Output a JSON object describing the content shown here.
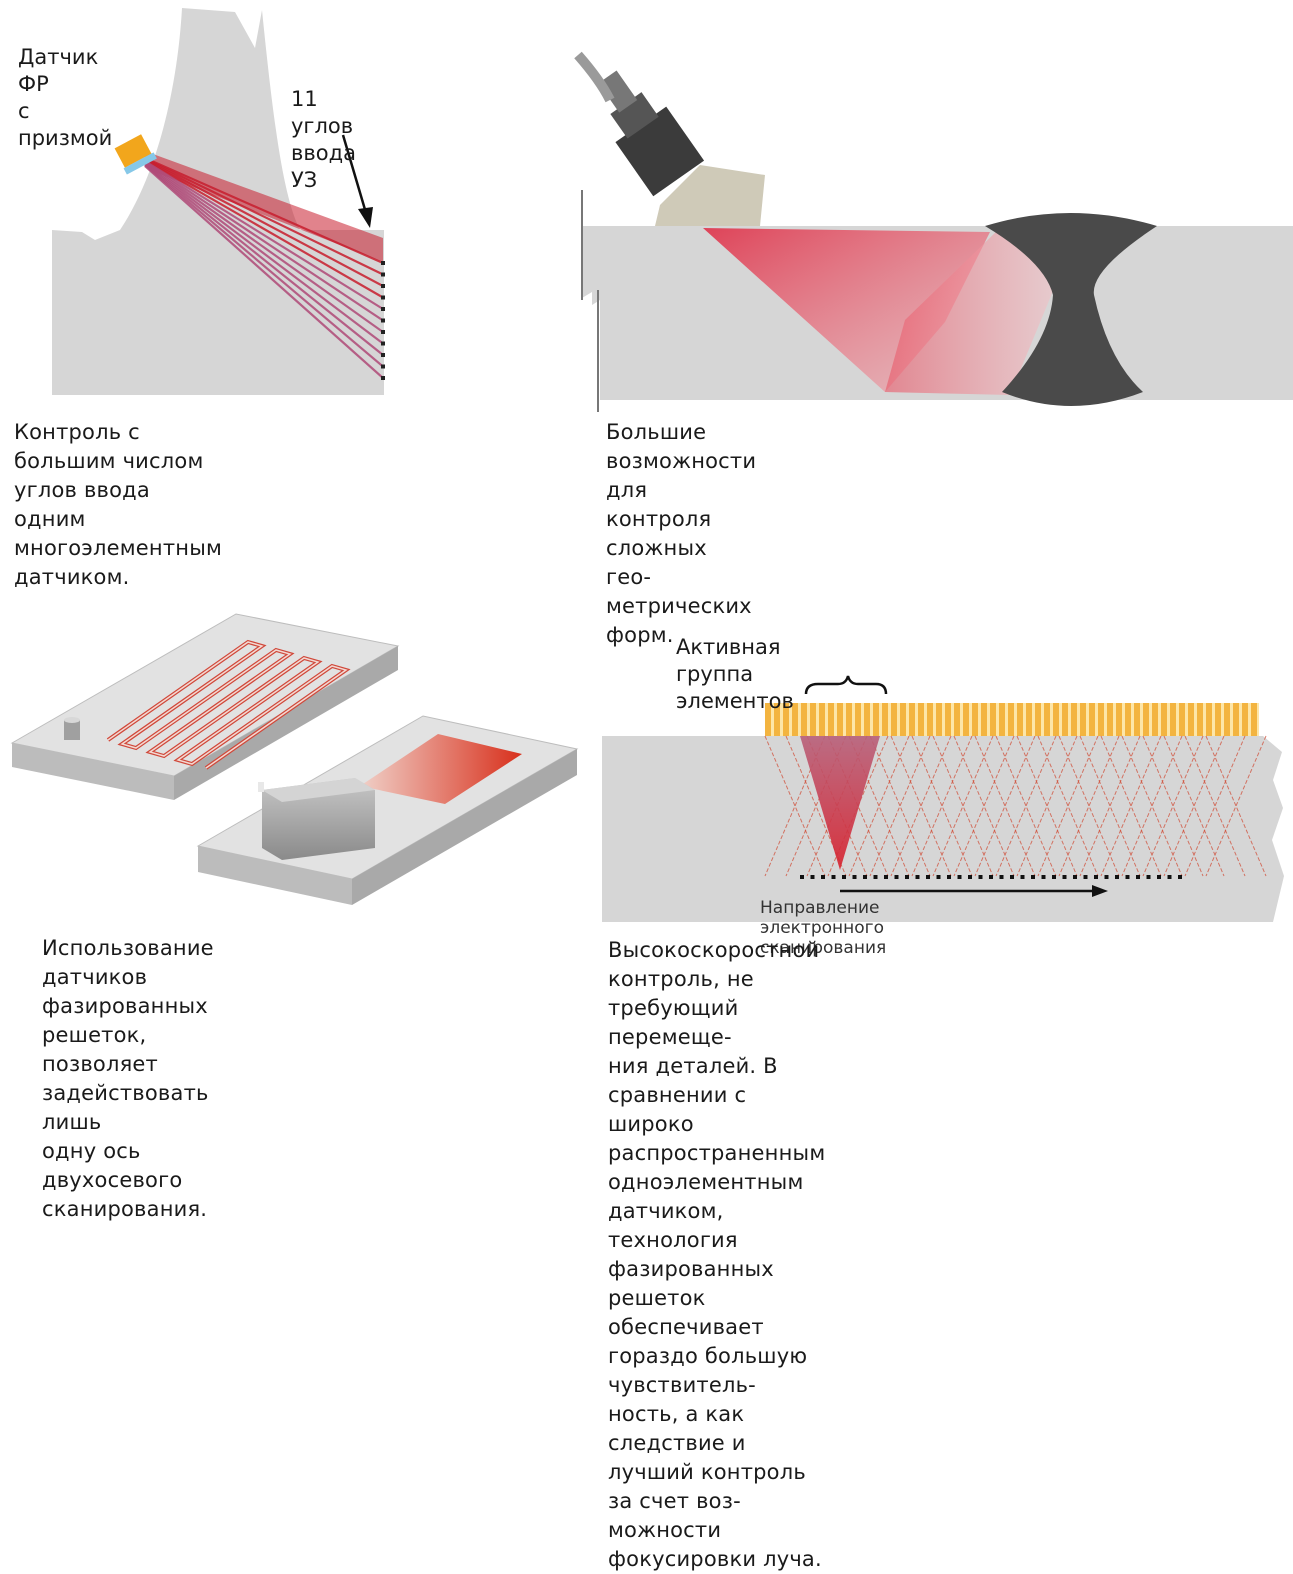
{
  "panels": {
    "multi_angle": {
      "sensor_label_line1": "Датчик ФР",
      "sensor_label_line2": "с призмой",
      "angles_label_line1": "11 углов",
      "angles_label_line2": "ввода УЗ",
      "caption_line1": "Контроль с большим числом углов ввода",
      "caption_line2": "одним многоэлементным датчиком."
    },
    "complex_geometry": {
      "caption_line1": "Большие возможности для контроля сложных гео-",
      "caption_line2": "метрических форм."
    },
    "two_axis": {
      "caption_line1": "Использование датчиков фазированных",
      "caption_line2": "решеток, позволяет задействовать лишь",
      "caption_line3": "одну ось двухосевого сканирования."
    },
    "electronic_scan": {
      "active_group_label": "Активная группа элементов",
      "scan_direction_label": "Направление электронного сканирования",
      "caption_line1": "Высокоскоростной контроль, не требующий перемеще-",
      "caption_line2": "ния деталей. В сравнении с широко распространенным",
      "caption_line3": "одноэлементным датчиком, технология фазированных",
      "caption_line4": "решеток обеспечивает гораздо большую чувствитель-",
      "caption_line5": "ность, а как следствие и лучший контроль за счет воз-",
      "caption_line6": "можности фокусировки луча."
    }
  },
  "colors": {
    "part_gray": "#d6d6d6",
    "beam_red": "#c81e2e",
    "weld_dark": "#4a4a4a",
    "element_orange": "#f0a830"
  },
  "icons": [
    "phased-array-probe-icon",
    "wedge-icon",
    "arrow-icon",
    "brace-icon"
  ]
}
